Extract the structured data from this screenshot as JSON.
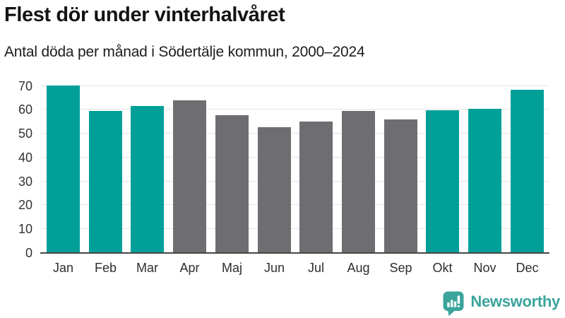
{
  "header": {
    "title": "Flest dör under vinterhalvåret",
    "subtitle": "Antal döda per månad i Södertälje kommun, 2000–2024"
  },
  "chart_data": {
    "type": "bar",
    "title": "Flest dör under vinterhalvåret",
    "subtitle": "Antal döda per månad i Södertälje kommun, 2000–2024",
    "categories": [
      "Jan",
      "Feb",
      "Mar",
      "Apr",
      "Maj",
      "Jun",
      "Jul",
      "Aug",
      "Sep",
      "Okt",
      "Nov",
      "Dec"
    ],
    "values": [
      69.8,
      59.2,
      61.4,
      63.5,
      57.5,
      52.4,
      54.9,
      59.3,
      55.7,
      59.6,
      60.1,
      68.1
    ],
    "highlighted": [
      true,
      true,
      true,
      false,
      false,
      false,
      false,
      false,
      false,
      true,
      true,
      true
    ],
    "palette": {
      "highlight": "#00A099",
      "base": "#6E6E72"
    },
    "xlabel": "",
    "ylabel": "",
    "ylim": [
      0,
      70
    ],
    "yticks": [
      0,
      10,
      20,
      30,
      40,
      50,
      60,
      70
    ],
    "grid": "horizontal",
    "gridline_color": "#E4E4E4",
    "axis_line_color": "#454545",
    "tick_label_color": "#333333",
    "legend": "none"
  },
  "footer": {
    "brand": "Newsworthy",
    "logo_color": "#3BA49B"
  }
}
